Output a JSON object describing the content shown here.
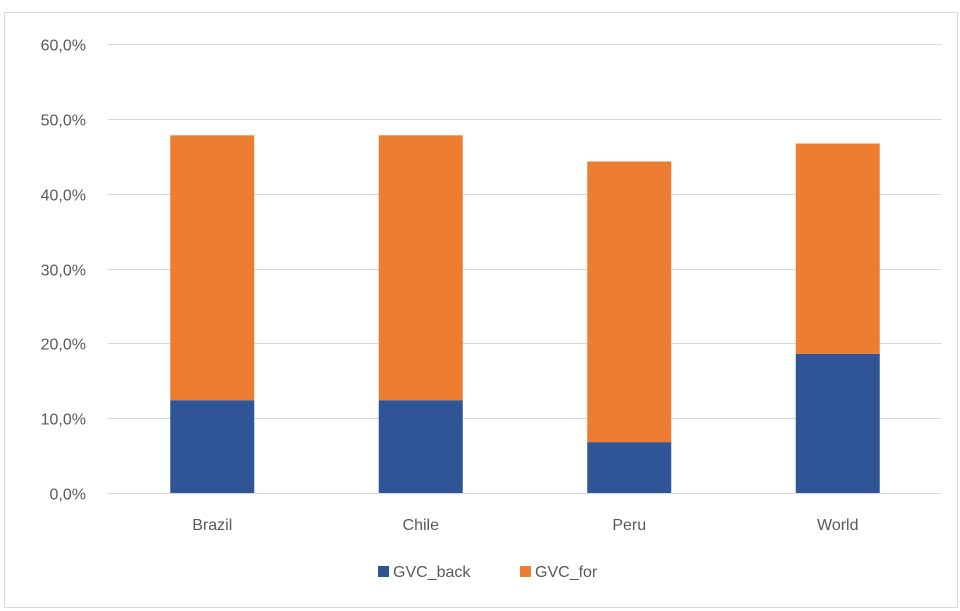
{
  "chart_data": {
    "type": "bar",
    "stacked": true,
    "categories": [
      "Brazil",
      "Chile",
      "Peru",
      "World"
    ],
    "series": [
      {
        "name": "GVC_back",
        "values": [
          12.4,
          12.4,
          6.8,
          18.6
        ],
        "color": "#2f5597"
      },
      {
        "name": "GVC_for",
        "values": [
          35.4,
          35.4,
          37.5,
          28.1
        ],
        "color": "#ed7d31"
      }
    ],
    "ylim": [
      0,
      60
    ],
    "yticks": [
      "0,0%",
      "10,0%",
      "20,0%",
      "30,0%",
      "40,0%",
      "50,0%",
      "60,0%"
    ],
    "grid": true,
    "legend_position": "bottom",
    "gridline_color": "#d9d9d9"
  }
}
